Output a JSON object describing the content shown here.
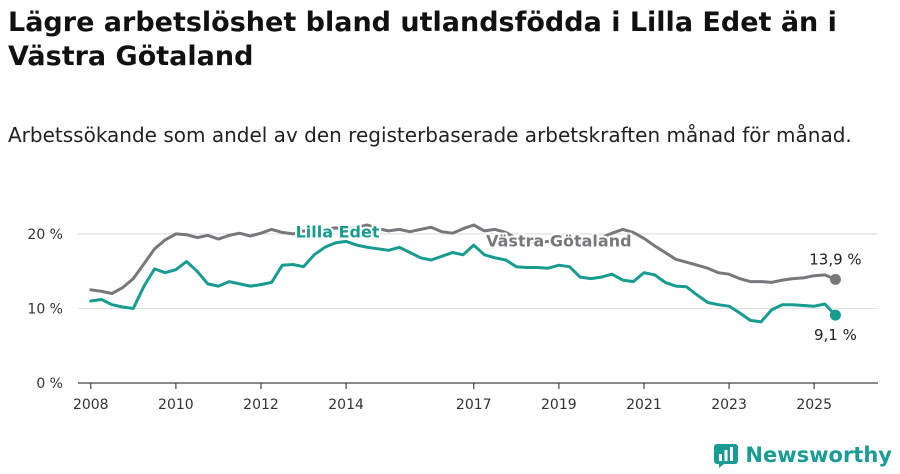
{
  "title": "Lägre arbetslöshet bland utlandsfödda i Lilla Edet än i Västra Götaland",
  "subtitle": "Arbetssökande som andel av den registerbaserade arbetskraften månad för månad.",
  "brand": "Newsworthy",
  "colors": {
    "lilla_edet": "#179c8f",
    "vastra_gotaland": "#7a777c",
    "grid": "#e2e2e2",
    "axis": "#444444",
    "brand": "#1a9c95"
  },
  "chart_data": {
    "type": "line",
    "x_unit": "year",
    "y_unit": "percent",
    "ylim": [
      0,
      22
    ],
    "xlim": [
      2007.7,
      2026.5
    ],
    "yticks": [
      0,
      10,
      20
    ],
    "ytick_labels": [
      "0 %",
      "10 %",
      "20 %"
    ],
    "xticks": [
      2008,
      2010,
      2012,
      2014,
      2017,
      2019,
      2021,
      2023,
      2025
    ],
    "xtick_labels": [
      "2008",
      "2010",
      "2012",
      "2014",
      "2017",
      "2019",
      "2021",
      "2023",
      "2025"
    ],
    "grid": true,
    "series": [
      {
        "name": "Västra Götaland",
        "color_key": "vastra_gotaland",
        "end_label": "13,9 %",
        "x": [
          2008.0,
          2008.25,
          2008.5,
          2008.75,
          2009.0,
          2009.25,
          2009.5,
          2009.75,
          2010.0,
          2010.25,
          2010.5,
          2010.75,
          2011.0,
          2011.25,
          2011.5,
          2011.75,
          2012.0,
          2012.25,
          2012.5,
          2012.75,
          2013.0,
          2013.25,
          2013.5,
          2013.75,
          2014.0,
          2014.25,
          2014.5,
          2014.75,
          2015.0,
          2015.25,
          2015.5,
          2015.75,
          2016.0,
          2016.25,
          2016.5,
          2016.75,
          2017.0,
          2017.25,
          2017.5,
          2017.75,
          2018.0,
          2018.25,
          2018.5,
          2018.75,
          2019.0,
          2019.25,
          2019.5,
          2019.75,
          2020.0,
          2020.25,
          2020.5,
          2020.75,
          2021.0,
          2021.25,
          2021.5,
          2021.75,
          2022.0,
          2022.25,
          2022.5,
          2022.75,
          2023.0,
          2023.25,
          2023.5,
          2023.75,
          2024.0,
          2024.25,
          2024.5,
          2024.75,
          2025.0,
          2025.25,
          2025.5
        ],
        "y": [
          12.5,
          12.3,
          12.0,
          12.8,
          14.0,
          16.0,
          18.0,
          19.2,
          20.0,
          19.9,
          19.5,
          19.8,
          19.3,
          19.8,
          20.1,
          19.7,
          20.1,
          20.6,
          20.2,
          20.0,
          20.4,
          20.2,
          20.6,
          20.8,
          20.6,
          20.9,
          21.2,
          20.7,
          20.4,
          20.6,
          20.3,
          20.6,
          20.9,
          20.3,
          20.1,
          20.7,
          21.2,
          20.4,
          20.6,
          20.2,
          19.4,
          19.0,
          18.8,
          19.0,
          18.8,
          18.6,
          18.4,
          18.9,
          19.5,
          20.1,
          20.6,
          20.2,
          19.4,
          18.4,
          17.5,
          16.6,
          16.2,
          15.8,
          15.4,
          14.8,
          14.6,
          14.0,
          13.6,
          13.6,
          13.5,
          13.8,
          14.0,
          14.1,
          14.4,
          14.5,
          13.9
        ]
      },
      {
        "name": "Lilla Edet",
        "color_key": "lilla_edet",
        "end_label": "9,1 %",
        "x": [
          2008.0,
          2008.25,
          2008.5,
          2008.75,
          2009.0,
          2009.25,
          2009.5,
          2009.75,
          2010.0,
          2010.25,
          2010.5,
          2010.75,
          2011.0,
          2011.25,
          2011.5,
          2011.75,
          2012.0,
          2012.25,
          2012.5,
          2012.75,
          2013.0,
          2013.25,
          2013.5,
          2013.75,
          2014.0,
          2014.25,
          2014.5,
          2014.75,
          2015.0,
          2015.25,
          2015.5,
          2015.75,
          2016.0,
          2016.25,
          2016.5,
          2016.75,
          2017.0,
          2017.25,
          2017.5,
          2017.75,
          2018.0,
          2018.25,
          2018.5,
          2018.75,
          2019.0,
          2019.25,
          2019.5,
          2019.75,
          2020.0,
          2020.25,
          2020.5,
          2020.75,
          2021.0,
          2021.25,
          2021.5,
          2021.75,
          2022.0,
          2022.25,
          2022.5,
          2022.75,
          2023.0,
          2023.25,
          2023.5,
          2023.75,
          2024.0,
          2024.25,
          2024.5,
          2024.75,
          2025.0,
          2025.25,
          2025.5
        ],
        "y": [
          11.0,
          11.2,
          10.5,
          10.2,
          10.0,
          13.0,
          15.3,
          14.8,
          15.2,
          16.3,
          15.0,
          13.3,
          13.0,
          13.6,
          13.3,
          13.0,
          13.2,
          13.5,
          15.8,
          15.9,
          15.6,
          17.2,
          18.2,
          18.8,
          19.0,
          18.5,
          18.2,
          18.0,
          17.8,
          18.2,
          17.5,
          16.8,
          16.5,
          17.0,
          17.5,
          17.2,
          18.5,
          17.2,
          16.8,
          16.5,
          15.6,
          15.5,
          15.5,
          15.4,
          15.8,
          15.6,
          14.2,
          14.0,
          14.2,
          14.6,
          13.8,
          13.6,
          14.8,
          14.5,
          13.5,
          13.0,
          12.9,
          11.8,
          10.8,
          10.5,
          10.3,
          9.4,
          8.4,
          8.2,
          9.8,
          10.5,
          10.5,
          10.4,
          10.3,
          10.6,
          9.1
        ]
      }
    ],
    "series_labels": [
      {
        "text": "Lilla Edet",
        "series": "Lilla Edet",
        "x": 2013.8,
        "y": 19.5
      },
      {
        "text": "Västra Götaland",
        "series": "Västra Götaland",
        "x": 2019.0,
        "y": 18.3
      }
    ]
  }
}
